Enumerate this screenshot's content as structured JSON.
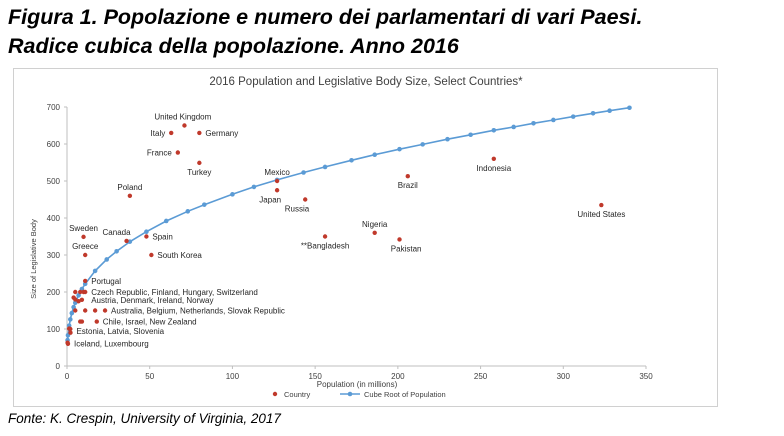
{
  "figure": {
    "title_line1": "Figura 1. Popolazione e numero dei parlamentari di vari Paesi.",
    "title_line2": "Radice cubica della popolazione. Anno 2016",
    "source": "Fonte: K. Crespin, University of Virginia, 2017"
  },
  "chart_data": {
    "type": "scatter",
    "title": "2016 Population and Legislative Body Size, Select Countries*",
    "xlabel": "Population (in millions)",
    "ylabel": "Size of Legislative Body",
    "xlim": [
      0,
      350
    ],
    "ylim": [
      0,
      700
    ],
    "xticks": [
      "0",
      "50",
      "100",
      "150",
      "200",
      "250",
      "300",
      "350"
    ],
    "yticks": [
      "0",
      "100",
      "200",
      "300",
      "400",
      "500",
      "600",
      "700"
    ],
    "grid": false,
    "legend_position": "bottom",
    "colors": {
      "country": "#c0392b",
      "curve": "#5b9bd5",
      "text": "#404040",
      "axis": "#bfbfbf"
    },
    "series": [
      {
        "name": "Country",
        "kind": "scatter",
        "points": [
          {
            "x": 71,
            "y": 650
          },
          {
            "x": 63,
            "y": 630
          },
          {
            "x": 80,
            "y": 630
          },
          {
            "x": 67,
            "y": 577
          },
          {
            "x": 80,
            "y": 549
          },
          {
            "x": 38,
            "y": 460
          },
          {
            "x": 127,
            "y": 500
          },
          {
            "x": 127,
            "y": 475
          },
          {
            "x": 144,
            "y": 450
          },
          {
            "x": 206,
            "y": 513
          },
          {
            "x": 258,
            "y": 560
          },
          {
            "x": 323,
            "y": 435
          },
          {
            "x": 186,
            "y": 360
          },
          {
            "x": 201,
            "y": 342
          },
          {
            "x": 156,
            "y": 350
          },
          {
            "x": 36,
            "y": 338
          },
          {
            "x": 48,
            "y": 350
          },
          {
            "x": 51,
            "y": 300
          },
          {
            "x": 10,
            "y": 349
          },
          {
            "x": 11,
            "y": 300
          },
          {
            "x": 11,
            "y": 230
          },
          {
            "x": 5,
            "y": 200
          },
          {
            "x": 8,
            "y": 200
          },
          {
            "x": 10,
            "y": 200
          },
          {
            "x": 11,
            "y": 200
          },
          {
            "x": 4,
            "y": 185
          },
          {
            "x": 5,
            "y": 180
          },
          {
            "x": 7,
            "y": 175
          },
          {
            "x": 9,
            "y": 179
          },
          {
            "x": 11,
            "y": 150
          },
          {
            "x": 17,
            "y": 150
          },
          {
            "x": 23,
            "y": 150
          },
          {
            "x": 5,
            "y": 150
          },
          {
            "x": 8,
            "y": 120
          },
          {
            "x": 9,
            "y": 120
          },
          {
            "x": 18,
            "y": 120
          },
          {
            "x": 1.3,
            "y": 101
          },
          {
            "x": 2,
            "y": 100
          },
          {
            "x": 2.1,
            "y": 90
          },
          {
            "x": 0.35,
            "y": 63
          },
          {
            "x": 0.58,
            "y": 60
          }
        ]
      },
      {
        "name": "Cube Root of Population",
        "kind": "line",
        "x": [
          0.35,
          0.58,
          1.3,
          2,
          2.9,
          4,
          5,
          7,
          9,
          11,
          17,
          24,
          30,
          38,
          48,
          60,
          73,
          83,
          100,
          113,
          127,
          143,
          156,
          172,
          186,
          201,
          215,
          230,
          244,
          258,
          270,
          282,
          294,
          306,
          318,
          328,
          340
        ],
        "y": [
          70,
          83,
          109,
          126,
          143,
          159,
          171,
          191,
          208,
          222,
          257,
          288,
          310,
          336,
          363,
          392,
          418,
          436,
          464,
          484,
          503,
          523,
          538,
          556,
          571,
          586,
          599,
          613,
          625,
          637,
          646,
          656,
          665,
          674,
          683,
          690,
          698
        ]
      }
    ],
    "annotations": [
      {
        "text": "United Kingdom",
        "x": 70,
        "y": 650,
        "pos": "above"
      },
      {
        "text": "Italy",
        "x": 63,
        "y": 630,
        "pos": "left"
      },
      {
        "text": "Germany",
        "x": 80,
        "y": 630,
        "pos": "right"
      },
      {
        "text": "France",
        "x": 67,
        "y": 577,
        "pos": "left"
      },
      {
        "text": "Turkey",
        "x": 80,
        "y": 549,
        "pos": "below"
      },
      {
        "text": "Poland",
        "x": 38,
        "y": 460,
        "pos": "above"
      },
      {
        "text": "Mexico",
        "x": 127,
        "y": 500,
        "pos": "above"
      },
      {
        "text": "Japan",
        "x": 127,
        "y": 475,
        "pos": "below-left"
      },
      {
        "text": "Russia",
        "x": 144,
        "y": 450,
        "pos": "below-left"
      },
      {
        "text": "Brazil",
        "x": 206,
        "y": 513,
        "pos": "below"
      },
      {
        "text": "Indonesia",
        "x": 258,
        "y": 560,
        "pos": "below"
      },
      {
        "text": "United States",
        "x": 323,
        "y": 435,
        "pos": "below"
      },
      {
        "text": "Nigeria",
        "x": 186,
        "y": 360,
        "pos": "above"
      },
      {
        "text": "Pakistan",
        "x": 205,
        "y": 342,
        "pos": "below"
      },
      {
        "text": "**Bangladesh",
        "x": 156,
        "y": 350,
        "pos": "below"
      },
      {
        "text": "Canada",
        "x": 36,
        "y": 338,
        "pos": "above-left"
      },
      {
        "text": "Spain",
        "x": 48,
        "y": 350,
        "pos": "right"
      },
      {
        "text": "South Korea",
        "x": 51,
        "y": 300,
        "pos": "right"
      },
      {
        "text": "Sweden",
        "x": 10,
        "y": 349,
        "pos": "above"
      },
      {
        "text": "Greece",
        "x": 11,
        "y": 300,
        "pos": "above"
      },
      {
        "text": "Portugal",
        "x": 11,
        "y": 230,
        "pos": "right"
      },
      {
        "text": "Czech Republic, Finland, Hungary, Switzerland",
        "x": 11,
        "y": 200,
        "pos": "right"
      },
      {
        "text": "Austria, Denmark, Ireland, Norway",
        "x": 11,
        "y": 179,
        "pos": "right"
      },
      {
        "text": "Australia, Belgium, Netherlands, Slovak Republic",
        "x": 23,
        "y": 150,
        "pos": "right"
      },
      {
        "text": "Chile, Israel, New Zealand",
        "x": 18,
        "y": 120,
        "pos": "right"
      },
      {
        "text": "Estonia, Latvia, Slovenia",
        "x": 2.1,
        "y": 95,
        "pos": "right"
      },
      {
        "text": "Iceland, Luxembourg",
        "x": 0.6,
        "y": 61,
        "pos": "right"
      }
    ]
  }
}
